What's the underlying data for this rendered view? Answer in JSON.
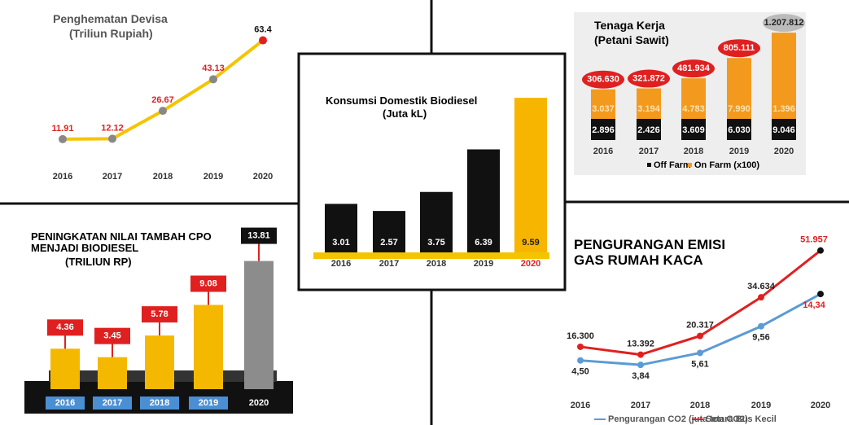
{
  "chart_data": [
    {
      "type": "line",
      "title": "Penghematan Devisa",
      "subtitle": "(Triliun Rupiah)",
      "categories": [
        "2016",
        "2017",
        "2018",
        "2019",
        "2020"
      ],
      "series": [
        {
          "name": null,
          "color": "#f5c400",
          "values": [
            11.91,
            12.12,
            26.67,
            43.13,
            63.4
          ]
        }
      ],
      "ylim": [
        0,
        70
      ]
    },
    {
      "type": "bar",
      "title": "Konsumsi Domestik Biodiesel",
      "subtitle": "(Juta kL)",
      "categories": [
        "2016",
        "2017",
        "2018",
        "2019",
        "2020"
      ],
      "values": [
        3.01,
        2.57,
        3.75,
        6.39,
        9.59
      ],
      "colors": [
        "#111111",
        "#111111",
        "#111111",
        "#111111",
        "#f7b500"
      ],
      "ylim": [
        0,
        10
      ]
    },
    {
      "type": "bar",
      "title": "Tenaga Kerja",
      "subtitle": "(Petani Sawit)",
      "categories": [
        "2016",
        "2017",
        "2018",
        "2019",
        "2020"
      ],
      "values": [
        306630,
        321872,
        481934,
        805111,
        1207812
      ],
      "value_labels": [
        "306.630",
        "321.872",
        "481.934",
        "805.111",
        "1.207.812"
      ],
      "colors": [
        "#f39a1e",
        "#f39a1e",
        "#f39a1e",
        "#f39a1e",
        "#f39a1e"
      ],
      "ylim": [
        -500000,
        1300000
      ],
      "series": [
        {
          "name": "Off Farm",
          "color": "#111111",
          "values": [
            2896,
            2426,
            3609,
            6030,
            9046
          ],
          "value_labels": [
            "2.896",
            "2.426",
            "3.609",
            "6.030",
            "9.046"
          ]
        },
        {
          "name": "On Farm (x100)",
          "color": "#f39a1e",
          "values": [
            3037,
            3194,
            4783,
            7990,
            1396
          ],
          "value_labels": [
            "3.037",
            "3.194",
            "4.783",
            "7.990",
            "1.396"
          ]
        }
      ]
    },
    {
      "type": "bar",
      "title": "PENINGKATAN NILAI TAMBAH CPO MENJADI BIODIESEL",
      "subtitle": "(TRILIUN RP)",
      "categories": [
        "2016",
        "2017",
        "2018",
        "2019",
        "2020"
      ],
      "values": [
        4.36,
        3.45,
        5.78,
        9.08,
        13.81
      ],
      "colors": [
        "#f5b800",
        "#f5b800",
        "#f5b800",
        "#f5b800",
        "#8c8c8c"
      ],
      "ylim": [
        0,
        15
      ]
    },
    {
      "type": "line",
      "title": "PENGURANGAN EMISI GAS RUMAH KACA",
      "categories": [
        "2016",
        "2017",
        "2018",
        "2019",
        "2020"
      ],
      "series": [
        {
          "name": "Pengurangan CO2 (juta ton CO2)",
          "color": "#5b9bd5",
          "values": [
            4.5,
            3.84,
            5.61,
            9.56,
            14.34
          ],
          "value_labels": [
            "4,50",
            "3,84",
            "5,61",
            "9,56",
            "14,34"
          ],
          "axis": "y2"
        },
        {
          "name": "Setara Bus Kecil",
          "color": "#e02020",
          "values": [
            16300,
            13392,
            20317,
            34634,
            51957
          ],
          "value_labels": [
            "16.300",
            "13.392",
            "20.317",
            "34.634",
            "51.957"
          ]
        }
      ],
      "ylim": [
        0,
        60000
      ],
      "y2lim": [
        0,
        24
      ]
    }
  ]
}
